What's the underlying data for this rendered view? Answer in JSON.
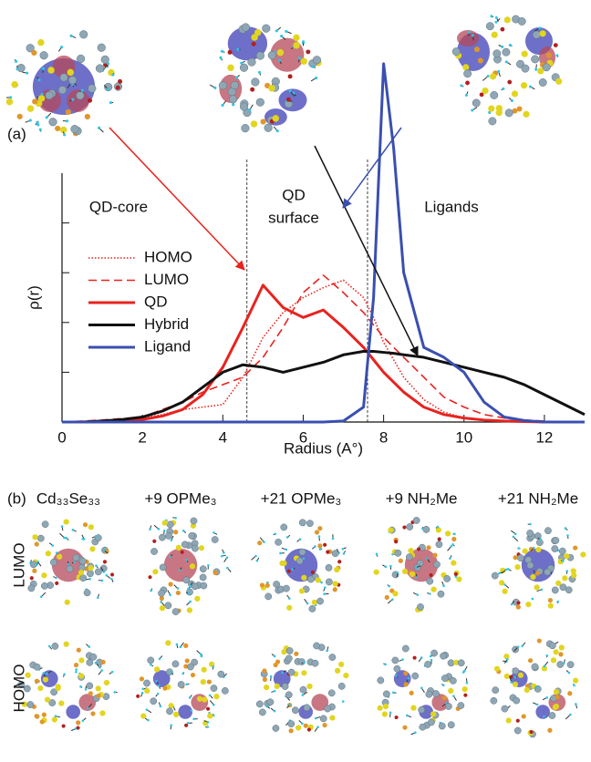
{
  "chart_data": {
    "type": "line",
    "panel_label": "(a)",
    "xlabel": "Radius (A°)",
    "ylabel": "ρ(r)",
    "region_labels": [
      "QD-core",
      "QD",
      "surface",
      "Ligands"
    ],
    "region_bounds": [
      4.6,
      7.6
    ],
    "x": [
      0,
      0.5,
      1,
      1.5,
      2,
      2.5,
      3,
      3.5,
      4,
      4.5,
      5,
      5.5,
      6,
      6.5,
      7,
      7.5,
      7.75,
      8,
      8.25,
      8.5,
      9,
      9.5,
      10,
      10.5,
      11,
      11.5,
      12,
      12.5,
      13
    ],
    "series": [
      {
        "name": "HOMO",
        "color": "#e8231f",
        "linestyle": "dotted",
        "values": [
          0,
          0,
          0.01,
          0.03,
          0.08,
          0.15,
          0.25,
          0.3,
          0.35,
          0.9,
          1.7,
          2.2,
          2.5,
          2.7,
          2.85,
          2.5,
          2.1,
          1.6,
          1.25,
          0.9,
          0.45,
          0.2,
          0.08,
          0.04,
          0.02,
          0.01,
          0,
          0,
          0
        ]
      },
      {
        "name": "LUMO",
        "color": "#e8231f",
        "linestyle": "dashed",
        "values": [
          0,
          0.02,
          0.04,
          0.07,
          0.1,
          0.25,
          0.4,
          0.6,
          0.75,
          0.9,
          1.3,
          1.9,
          2.6,
          2.95,
          2.6,
          2.2,
          1.95,
          1.7,
          1.5,
          1.3,
          0.9,
          0.5,
          0.3,
          0.15,
          0.08,
          0.04,
          0.02,
          0,
          0
        ]
      },
      {
        "name": "QD",
        "color": "#e8231f",
        "linestyle": "solid",
        "values": [
          0,
          0,
          0.01,
          0.02,
          0.05,
          0.12,
          0.25,
          0.55,
          1.1,
          1.9,
          2.75,
          2.3,
          2.1,
          2.25,
          1.9,
          1.5,
          1.25,
          1.0,
          0.8,
          0.6,
          0.3,
          0.15,
          0.08,
          0.04,
          0.02,
          0.01,
          0,
          0,
          0
        ]
      },
      {
        "name": "Hybrid",
        "color": "#111111",
        "linestyle": "solid",
        "values": [
          0,
          0,
          0.02,
          0.05,
          0.1,
          0.22,
          0.4,
          0.7,
          1.0,
          1.15,
          1.1,
          1.0,
          1.1,
          1.2,
          1.35,
          1.42,
          1.42,
          1.4,
          1.38,
          1.35,
          1.3,
          1.2,
          1.1,
          1.0,
          0.9,
          0.75,
          0.55,
          0.35,
          0.15
        ]
      },
      {
        "name": "Ligand",
        "color": "#3a4fb0",
        "linestyle": "solid",
        "values": [
          0,
          0,
          0,
          0,
          0,
          0,
          0,
          0,
          0,
          0,
          0,
          0,
          0,
          0,
          0.02,
          0.3,
          2.5,
          7.2,
          5.5,
          3,
          1.5,
          1.3,
          1.0,
          0.4,
          0.1,
          0.03,
          0,
          0,
          0
        ]
      }
    ],
    "xlim": [
      0,
      13
    ],
    "xticks": [
      0,
      2,
      4,
      6,
      8,
      10,
      12
    ],
    "ylim": [
      0,
      5
    ],
    "yticks": [
      1,
      2,
      3,
      4
    ],
    "legend": "left"
  },
  "panel_b": {
    "label": "(b)",
    "columns": [
      "Cd₃₃Se₃₃",
      "+9 OPMe₃",
      "+21 OPMe₃",
      "+9 NH₂Me",
      "+21 NH₂Me"
    ],
    "rows": [
      "LUMO",
      "HOMO"
    ]
  }
}
